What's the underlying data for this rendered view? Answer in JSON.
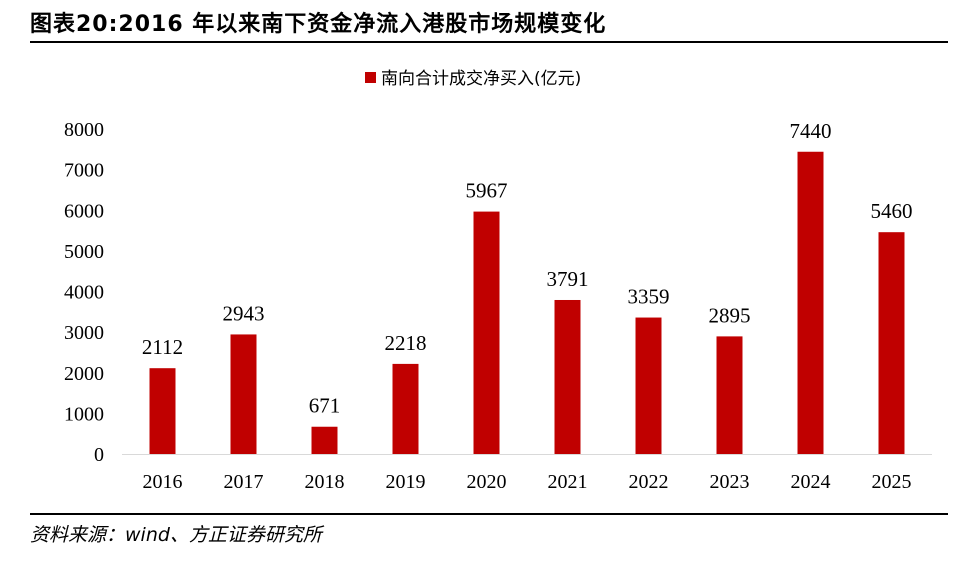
{
  "page": {
    "title": "图表20:2016 年以来南下资金净流入港股市场规模变化",
    "source": "资料来源：wind、方正证券研究所"
  },
  "chart_data": {
    "type": "bar",
    "categories": [
      "2016",
      "2017",
      "2018",
      "2019",
      "2020",
      "2021",
      "2022",
      "2023",
      "2024",
      "2025"
    ],
    "series": [
      {
        "name": "南向合计成交净买入(亿元)",
        "values": [
          2112,
          2943,
          671,
          2218,
          5967,
          3791,
          3359,
          2895,
          7440,
          5460
        ],
        "color": "#C00000"
      }
    ],
    "data_labels": [
      "2112",
      "2943",
      "671",
      "2218",
      "5967",
      "3791",
      "3359",
      "2895",
      "7440",
      "5460"
    ],
    "yticks": [
      "0",
      "1000",
      "2000",
      "3000",
      "4000",
      "5000",
      "6000",
      "7000",
      "8000"
    ],
    "ylim": [
      0,
      8000
    ],
    "grid": false,
    "legend_position": "top-center",
    "title": "",
    "xlabel": "",
    "ylabel": ""
  }
}
